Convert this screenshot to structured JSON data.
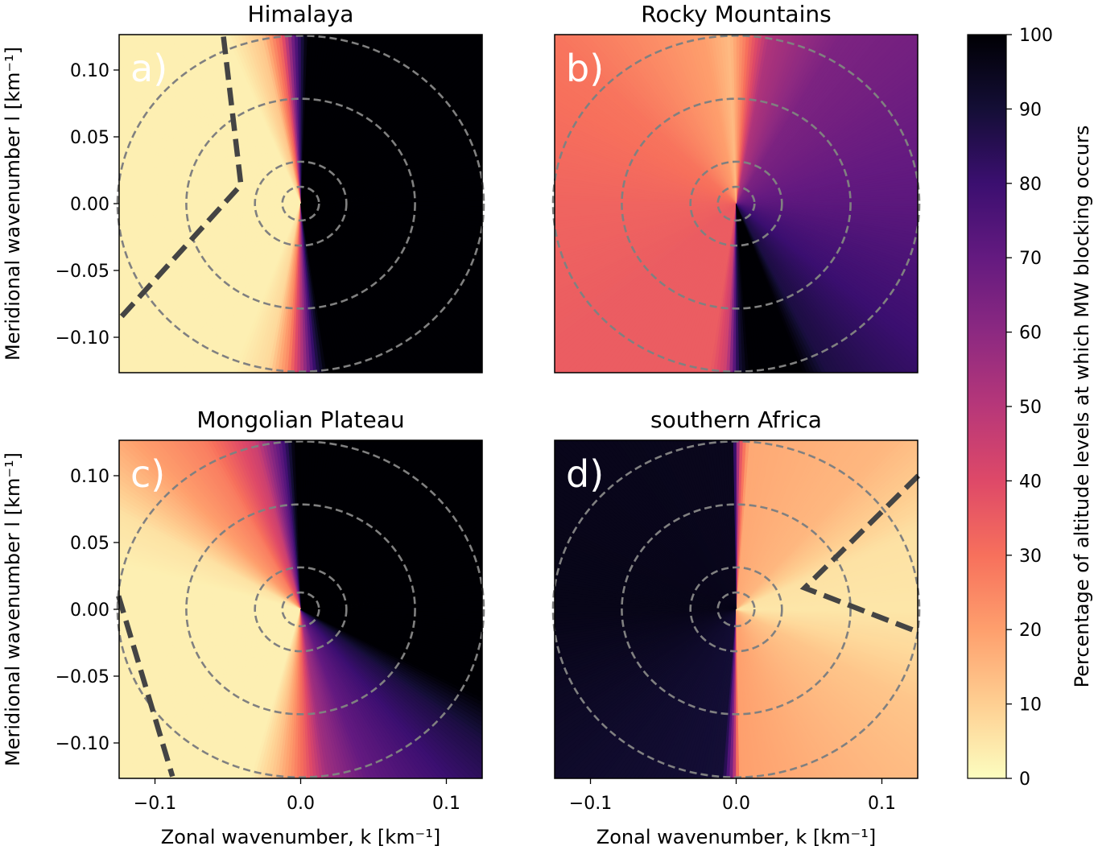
{
  "chart_data": {
    "type": "heatmap",
    "colormap": "magma_r",
    "colorbar": {
      "label": "Percentage of altitude levels at which MW blocking occurs",
      "range": [
        0,
        100
      ],
      "ticks": [
        "0",
        "10",
        "20",
        "30",
        "40",
        "50",
        "60",
        "70",
        "80",
        "90",
        "100"
      ]
    },
    "xlim": [
      -0.1246,
      0.1246
    ],
    "ylim": [
      -0.1265,
      0.1265
    ],
    "xlabel": "Zonal wavenumber, k [km⁻¹]",
    "ylabel": "Meridional wavenumber l [km⁻¹]",
    "xticks": [
      {
        "v": -0.1,
        "label": "−0.1"
      },
      {
        "v": 0.0,
        "label": "0.0"
      },
      {
        "v": 0.1,
        "label": "0.1"
      }
    ],
    "yticks": [
      {
        "v": 0.1,
        "label": "0.10"
      },
      {
        "v": 0.05,
        "label": "0.05"
      },
      {
        "v": 0.0,
        "label": "0.00"
      },
      {
        "v": -0.05,
        "label": "−0.05"
      },
      {
        "v": -0.1,
        "label": "−0.10"
      }
    ],
    "circle_radii": [
      0.0126,
      0.0314,
      0.0785,
      0.1257
    ],
    "circle_color": "#808080",
    "panels": [
      {
        "title": "Himalaya",
        "label": "a)",
        "angle_values": [
          [
            0,
            100
          ],
          [
            88,
            100
          ],
          [
            92,
            72
          ],
          [
            96,
            35
          ],
          [
            102,
            12
          ],
          [
            112,
            3
          ],
          [
            250,
            3
          ],
          [
            260,
            8
          ],
          [
            266,
            25
          ],
          [
            271,
            55
          ],
          [
            275,
            85
          ],
          [
            278,
            100
          ],
          [
            360,
            100
          ]
        ],
        "thick_line": [
          [
            -0.053,
            0.125
          ],
          [
            -0.041,
            0.014
          ],
          [
            -0.125,
            -0.087
          ]
        ]
      },
      {
        "title": "Rocky Mountains",
        "label": "b)",
        "angle_values": [
          [
            0,
            72
          ],
          [
            30,
            68
          ],
          [
            60,
            64
          ],
          [
            80,
            52
          ],
          [
            88,
            25
          ],
          [
            92,
            14
          ],
          [
            100,
            20
          ],
          [
            135,
            29
          ],
          [
            180,
            33
          ],
          [
            225,
            35
          ],
          [
            262,
            35
          ],
          [
            267,
            45
          ],
          [
            271,
            90
          ],
          [
            274,
            100
          ],
          [
            290,
            100
          ],
          [
            296,
            88
          ],
          [
            320,
            80
          ],
          [
            360,
            72
          ]
        ],
        "thick_line": []
      },
      {
        "title": "Mongolian Plateau",
        "label": "c)",
        "angle_values": [
          [
            0,
            100
          ],
          [
            92,
            100
          ],
          [
            96,
            75
          ],
          [
            104,
            45
          ],
          [
            118,
            27
          ],
          [
            132,
            20
          ],
          [
            150,
            6
          ],
          [
            165,
            3
          ],
          [
            255,
            3
          ],
          [
            262,
            12
          ],
          [
            267,
            22
          ],
          [
            272,
            35
          ],
          [
            278,
            55
          ],
          [
            290,
            70
          ],
          [
            305,
            78
          ],
          [
            322,
            88
          ],
          [
            332,
            100
          ],
          [
            360,
            100
          ]
        ],
        "thick_line": [
          [
            -0.125,
            0.01
          ],
          [
            -0.088,
            -0.125
          ]
        ]
      },
      {
        "title": "southern Africa",
        "label": "d)",
        "angle_values": [
          [
            0,
            5
          ],
          [
            25,
            6
          ],
          [
            35,
            10
          ],
          [
            50,
            15
          ],
          [
            86,
            18
          ],
          [
            89,
            40
          ],
          [
            91,
            95
          ],
          [
            180,
            96
          ],
          [
            230,
            92
          ],
          [
            266,
            90
          ],
          [
            269,
            60
          ],
          [
            271,
            20
          ],
          [
            300,
            16
          ],
          [
            330,
            12
          ],
          [
            345,
            8
          ],
          [
            360,
            5
          ]
        ],
        "thick_line": [
          [
            0.125,
            0.1
          ],
          [
            0.047,
            0.016
          ],
          [
            0.125,
            -0.017
          ]
        ]
      }
    ]
  }
}
